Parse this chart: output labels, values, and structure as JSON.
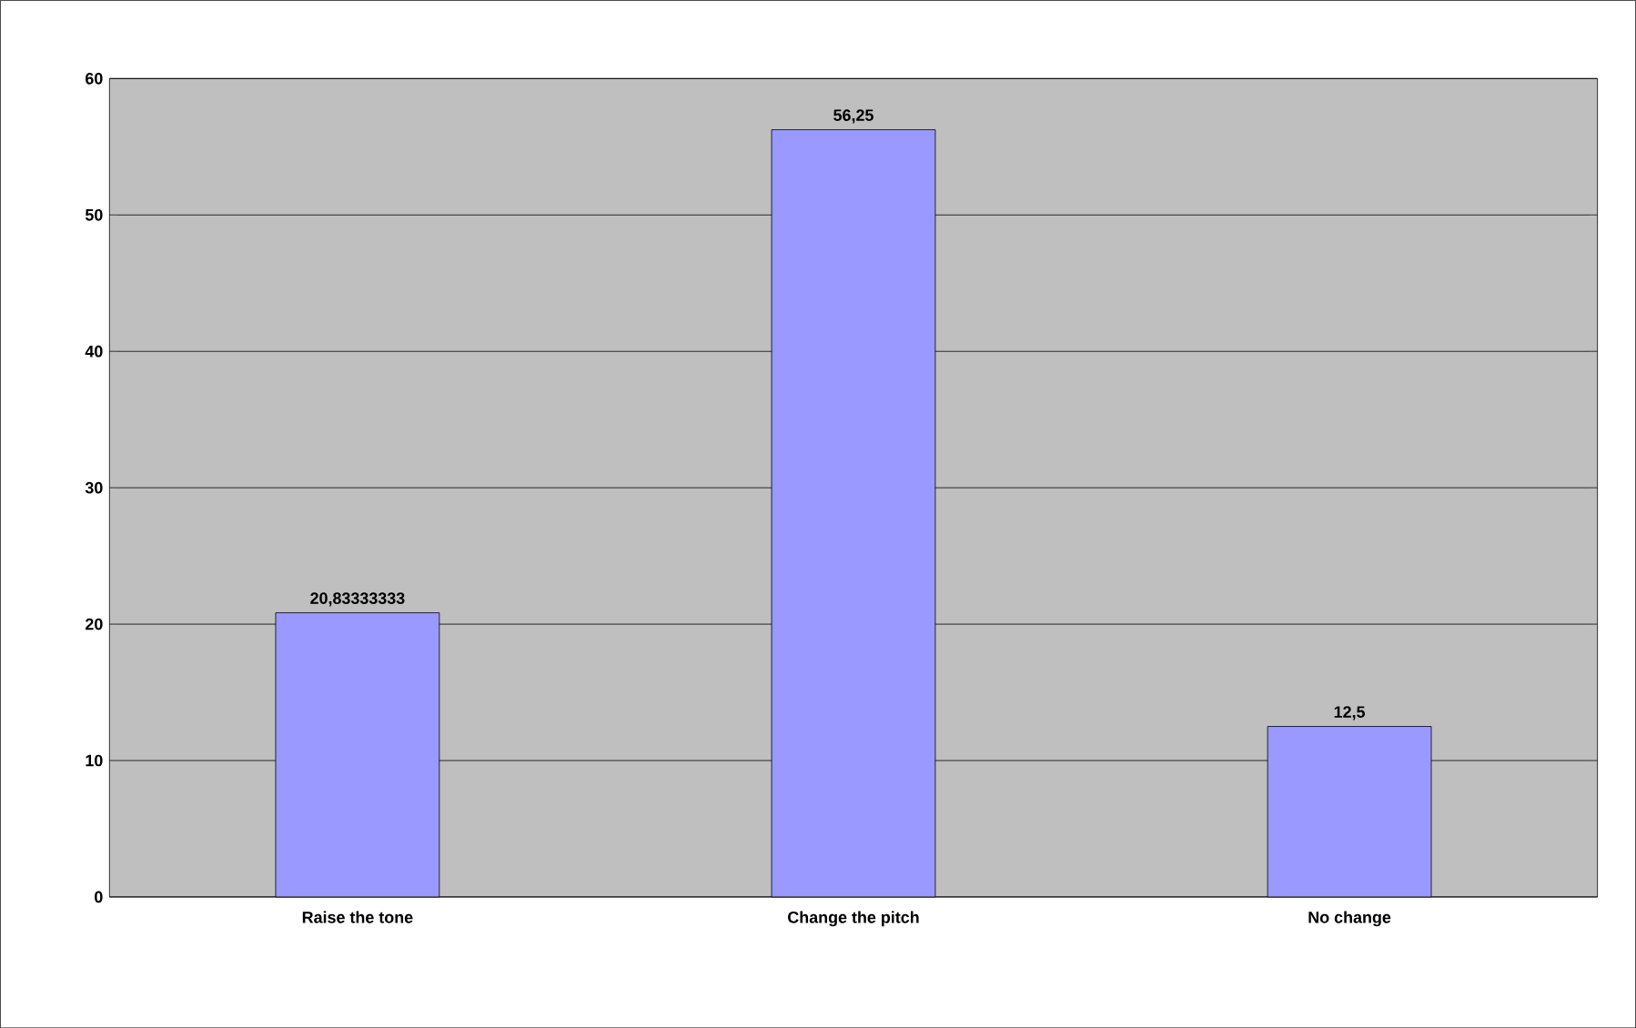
{
  "chart_data": {
    "type": "bar",
    "categories": [
      "Raise the tone",
      "Change the pitch",
      "No change"
    ],
    "values": [
      20.83333333,
      56.25,
      12.5
    ],
    "value_labels": [
      "20,83333333",
      "56,25",
      "12,5"
    ],
    "color": "#9999ff",
    "ylim": [
      0,
      60
    ],
    "yticks": [
      0,
      10,
      20,
      30,
      40,
      50,
      60
    ],
    "grid": "y"
  }
}
